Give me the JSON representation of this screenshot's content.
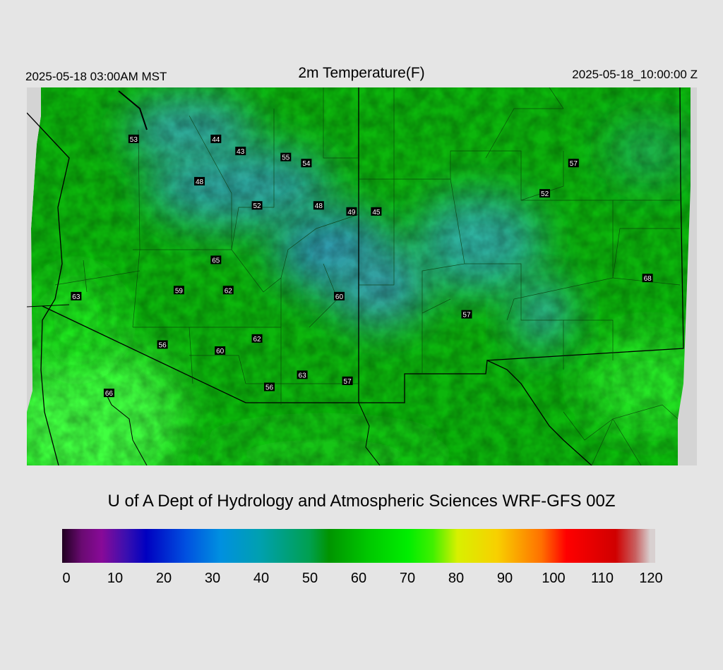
{
  "header": {
    "local_time": "2025-05-18 03:00AM MST",
    "title": "2m Temperature(F)",
    "valid_time": "2025-05-18_10:00:00 Z"
  },
  "station_labels": [
    {
      "text": "53",
      "lon": -112.9,
      "lat": 37.8
    },
    {
      "text": "44",
      "lon": -110.9,
      "lat": 37.8
    },
    {
      "text": "43",
      "lon": -110.3,
      "lat": 37.6
    },
    {
      "text": "55",
      "lon": -109.2,
      "lat": 37.5
    },
    {
      "text": "54",
      "lon": -108.7,
      "lat": 37.4
    },
    {
      "text": "48",
      "lon": -111.3,
      "lat": 37.1
    },
    {
      "text": "52",
      "lon": -109.9,
      "lat": 36.7
    },
    {
      "text": "48",
      "lon": -108.4,
      "lat": 36.7
    },
    {
      "text": "49",
      "lon": -107.6,
      "lat": 36.6
    },
    {
      "text": "45",
      "lon": -107.0,
      "lat": 36.6
    },
    {
      "text": "57",
      "lon": -102.2,
      "lat": 37.4
    },
    {
      "text": "52",
      "lon": -102.9,
      "lat": 36.9
    },
    {
      "text": "65",
      "lon": -110.9,
      "lat": 35.8
    },
    {
      "text": "59",
      "lon": -111.8,
      "lat": 35.3
    },
    {
      "text": "62",
      "lon": -110.6,
      "lat": 35.3
    },
    {
      "text": "60",
      "lon": -107.9,
      "lat": 35.2
    },
    {
      "text": "57",
      "lon": -104.8,
      "lat": 34.9
    },
    {
      "text": "68",
      "lon": -100.4,
      "lat": 35.5
    },
    {
      "text": "63",
      "lon": -114.3,
      "lat": 35.2
    },
    {
      "text": "56",
      "lon": -112.2,
      "lat": 34.4
    },
    {
      "text": "60",
      "lon": -110.8,
      "lat": 34.3
    },
    {
      "text": "62",
      "lon": -109.9,
      "lat": 34.5
    },
    {
      "text": "63",
      "lon": -108.8,
      "lat": 33.9
    },
    {
      "text": "56",
      "lon": -109.6,
      "lat": 33.7
    },
    {
      "text": "57",
      "lon": -107.7,
      "lat": 33.8
    },
    {
      "text": "66",
      "lon": -113.5,
      "lat": 33.6
    }
  ],
  "colorbar": {
    "min": 0,
    "max": 120,
    "ticks": [
      "0",
      "10",
      "20",
      "30",
      "40",
      "50",
      "60",
      "70",
      "80",
      "90",
      "100",
      "110",
      "120"
    ],
    "stops": [
      {
        "value": 0,
        "color": "#200020"
      },
      {
        "value": 4,
        "color": "#6a0a72"
      },
      {
        "value": 8,
        "color": "#880a98"
      },
      {
        "value": 13,
        "color": "#3a0fb0"
      },
      {
        "value": 17,
        "color": "#0000c0"
      },
      {
        "value": 25,
        "color": "#0050e0"
      },
      {
        "value": 32,
        "color": "#0090e0"
      },
      {
        "value": 40,
        "color": "#00a0b0"
      },
      {
        "value": 50,
        "color": "#00a050"
      },
      {
        "value": 54,
        "color": "#009400"
      },
      {
        "value": 62,
        "color": "#00c800"
      },
      {
        "value": 70,
        "color": "#00ee00"
      },
      {
        "value": 75,
        "color": "#40f000"
      },
      {
        "value": 80,
        "color": "#d8f000"
      },
      {
        "value": 88,
        "color": "#f8d000"
      },
      {
        "value": 97,
        "color": "#ff7000"
      },
      {
        "value": 102,
        "color": "#ff0000"
      },
      {
        "value": 112,
        "color": "#d00000"
      },
      {
        "value": 116,
        "color": "#c86060"
      },
      {
        "value": 119,
        "color": "#d8d0d0"
      }
    ]
  },
  "footer": {
    "credit": "U of A Dept of Hydrology and Atmospheric Sciences WRF-GFS 00Z"
  },
  "colors": {
    "background": "#e5e5e5",
    "boundary": "#000000",
    "label_bg": "#000000",
    "label_fg": "#ffffff"
  }
}
